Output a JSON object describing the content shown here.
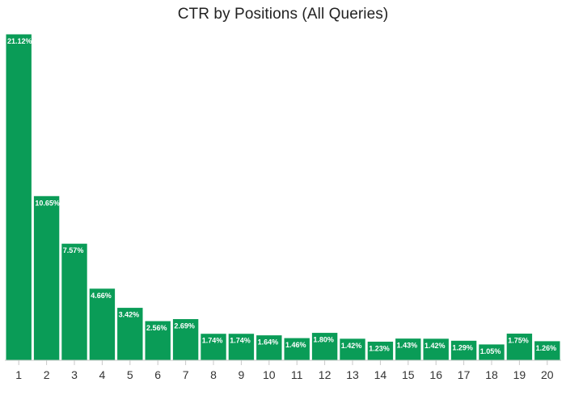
{
  "chart_data": {
    "type": "bar",
    "title": "CTR by Positions (All Queries)",
    "xlabel": "",
    "ylabel": "",
    "categories": [
      "1",
      "2",
      "3",
      "4",
      "5",
      "6",
      "7",
      "8",
      "9",
      "10",
      "11",
      "12",
      "13",
      "14",
      "15",
      "16",
      "17",
      "18",
      "19",
      "20"
    ],
    "values": [
      21.12,
      10.65,
      7.57,
      4.66,
      3.42,
      2.56,
      2.69,
      1.74,
      1.74,
      1.64,
      1.46,
      1.8,
      1.42,
      1.23,
      1.43,
      1.42,
      1.29,
      1.05,
      1.75,
      1.26
    ],
    "labels": [
      "21.12%",
      "10.65%",
      "7.57%",
      "4.66%",
      "3.42%",
      "2.56%",
      "2.69%",
      "1.74%",
      "1.74%",
      "1.64%",
      "1.46%",
      "1.80%",
      "1.42%",
      "1.23%",
      "1.43%",
      "1.42%",
      "1.29%",
      "1.05%",
      "1.75%",
      "1.26%"
    ],
    "ylim": [
      0,
      21.12
    ],
    "grid": false,
    "bar_color": "#0a9c57",
    "bar_border_color": "#ffffff",
    "axis_color": "#c8c8c8"
  }
}
